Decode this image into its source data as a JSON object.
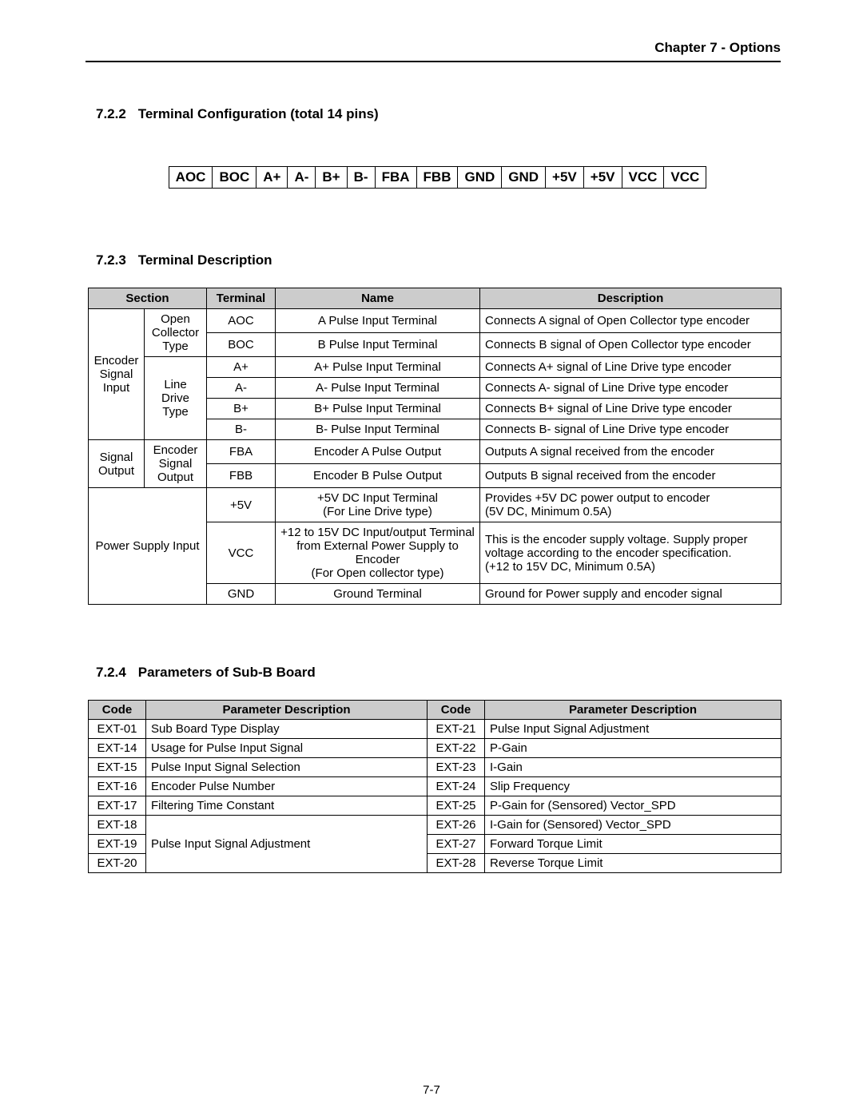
{
  "header": {
    "chapter_title": "Chapter 7 - Options"
  },
  "section_722": {
    "num": "7.2.2",
    "title": "Terminal Configuration (total 14 pins)",
    "pins": [
      "AOC",
      "BOC",
      "A+",
      "A-",
      "B+",
      "B-",
      "FBA",
      "FBB",
      "GND",
      "GND",
      "+5V",
      "+5V",
      "VCC",
      "VCC"
    ]
  },
  "section_723": {
    "num": "7.2.3",
    "title": "Terminal Description",
    "columns": [
      "Section",
      "Terminal",
      "Name",
      "Description"
    ],
    "col_widths": [
      "140px",
      "86px",
      "260px",
      "auto"
    ],
    "header": {
      "bg": "#cccccc",
      "text": "#000000"
    },
    "section_groups": [
      {
        "label": "Encoder Signal Input",
        "rowspan": 6
      },
      {
        "label": "Signal Output",
        "rowspan": 2
      },
      {
        "label": "Power Supply Input",
        "rowspan": 3,
        "colspan": 2
      }
    ],
    "subsections": [
      {
        "label": "Open Collector Type",
        "rowspan": 2
      },
      {
        "label": "Line Drive Type",
        "rowspan": 4
      },
      {
        "label": "Encoder Signal Output",
        "rowspan": 2
      }
    ],
    "rows": [
      {
        "terminal": "AOC",
        "name": "A Pulse Input Terminal",
        "desc": "Connects A signal of Open Collector type encoder"
      },
      {
        "terminal": "BOC",
        "name": "B Pulse Input Terminal",
        "desc": "Connects B signal of Open Collector type encoder"
      },
      {
        "terminal": "A+",
        "name": "A+ Pulse Input Terminal",
        "desc": "Connects A+ signal of Line Drive type encoder"
      },
      {
        "terminal": "A-",
        "name": "A- Pulse Input Terminal",
        "desc": "Connects A- signal of Line Drive type encoder"
      },
      {
        "terminal": "B+",
        "name": "B+ Pulse Input Terminal",
        "desc": "Connects B+ signal of Line Drive type encoder"
      },
      {
        "terminal": "B-",
        "name": "B- Pulse Input Terminal",
        "desc": "Connects B- signal of Line Drive type encoder"
      },
      {
        "terminal": "FBA",
        "name": "Encoder A Pulse Output",
        "desc": "Outputs A signal received from the encoder"
      },
      {
        "terminal": "FBB",
        "name": "Encoder B Pulse Output",
        "desc": "Outputs B signal received from the encoder"
      },
      {
        "terminal": "+5V",
        "name": "+5V DC Input Terminal\n(For Line Drive type)",
        "desc": "Provides +5V DC power output to encoder\n(5V DC, Minimum 0.5A)"
      },
      {
        "terminal": "VCC",
        "name": "+12 to 15V DC Input/output Terminal from External Power Supply  to Encoder\n(For Open collector type)",
        "desc": "This is the encoder supply voltage. Supply proper voltage according to the encoder specification.\n(+12 to 15V DC, Minimum 0.5A)"
      },
      {
        "terminal": "GND",
        "name": "Ground Terminal",
        "desc": "Ground for Power supply and encoder signal"
      }
    ]
  },
  "section_724": {
    "num": "7.2.4",
    "title": "Parameters of Sub-B Board",
    "columns": [
      "Code",
      "Parameter Description",
      "Code",
      "Parameter Description"
    ],
    "col_widths": [
      "72px",
      "308px",
      "72px",
      "auto"
    ],
    "header": {
      "bg": "#cccccc",
      "text": "#000000"
    },
    "left": [
      {
        "code": "EXT-01",
        "desc": "Sub Board Type Display"
      },
      {
        "code": "EXT-14",
        "desc": "Usage for Pulse Input Signal"
      },
      {
        "code": "EXT-15",
        "desc": "Pulse Input Signal Selection"
      },
      {
        "code": "EXT-16",
        "desc": "Encoder Pulse Number"
      },
      {
        "code": "EXT-17",
        "desc": "Filtering Time Constant"
      },
      {
        "code": "EXT-18",
        "desc": "",
        "merged_desc_start": true
      },
      {
        "code": "EXT-19",
        "desc": "Pulse Input Signal Adjustment",
        "merged_desc_middle": true
      },
      {
        "code": "EXT-20",
        "desc": "",
        "merged_desc_end": true
      }
    ],
    "right": [
      {
        "code": "EXT-21",
        "desc": "Pulse Input Signal Adjustment"
      },
      {
        "code": "EXT-22",
        "desc": "P-Gain"
      },
      {
        "code": "EXT-23",
        "desc": "I-Gain"
      },
      {
        "code": "EXT-24",
        "desc": "Slip Frequency"
      },
      {
        "code": "EXT-25",
        "desc": "P-Gain for (Sensored) Vector_SPD"
      },
      {
        "code": "EXT-26",
        "desc": "I-Gain for (Sensored) Vector_SPD"
      },
      {
        "code": "EXT-27",
        "desc": "Forward Torque Limit"
      },
      {
        "code": "EXT-28",
        "desc": "Reverse Torque Limit"
      }
    ]
  },
  "footer": {
    "page_num": "7-7"
  }
}
